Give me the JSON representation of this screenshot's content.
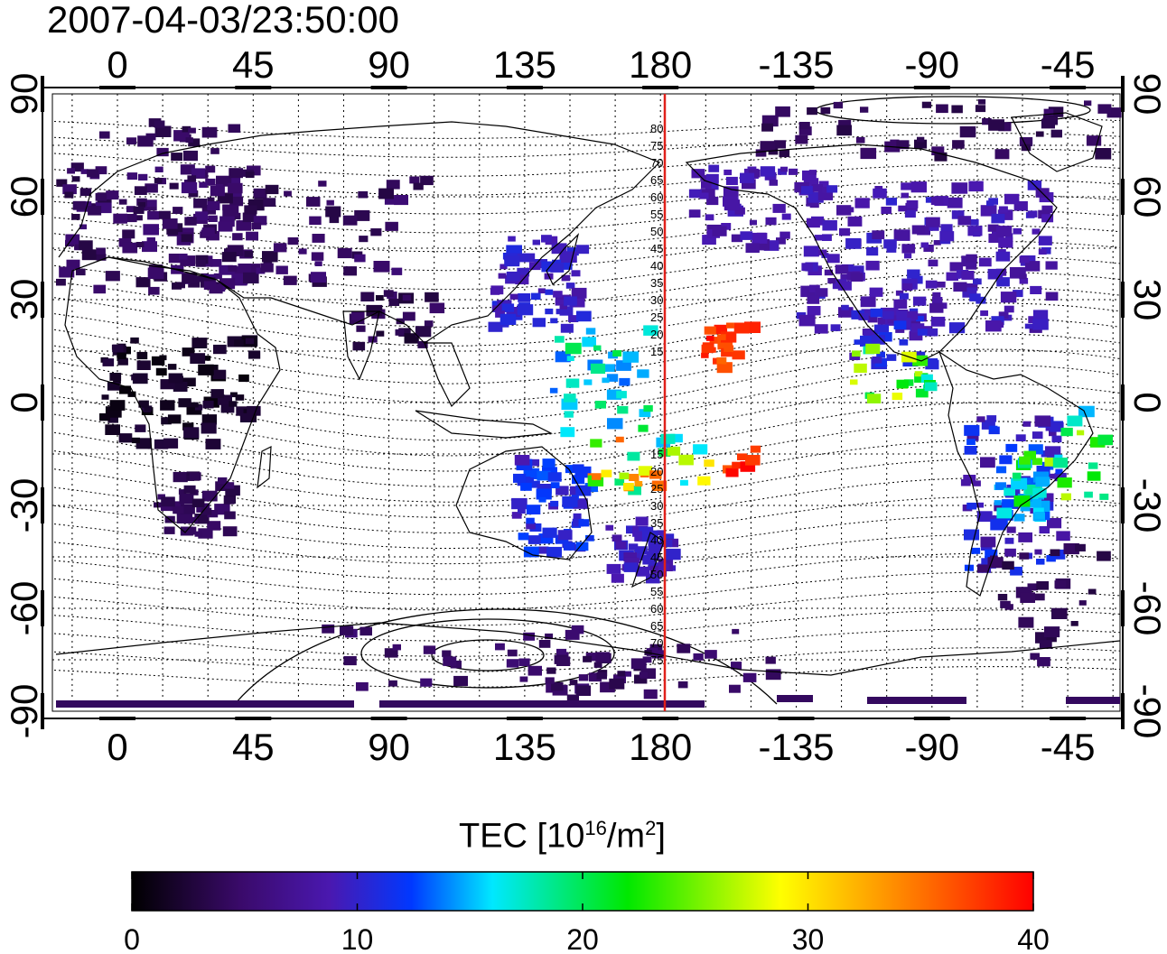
{
  "title": "2007-04-03/23:50:00",
  "map": {
    "lon_ticks_top": [
      "0",
      "45",
      "90",
      "135",
      "180",
      "-135",
      "-90",
      "-45"
    ],
    "lon_ticks_bottom": [
      "0",
      "45",
      "90",
      "135",
      "180",
      "-135",
      "-90",
      "-45"
    ],
    "lat_ticks_left": [
      "90",
      "60",
      "30",
      "0",
      "-30",
      "-60",
      "-90"
    ],
    "lat_ticks_right": [
      "90",
      "60",
      "30",
      "0",
      "-30",
      "-60",
      "-90"
    ],
    "meridian_labels_north": [
      "80",
      "75",
      "70",
      "65",
      "60",
      "55",
      "50",
      "45",
      "40",
      "35",
      "30",
      "25",
      "20",
      "15"
    ],
    "meridian_labels_south": [
      "15",
      "20",
      "25",
      "30",
      "35",
      "40",
      "45",
      "50",
      "55",
      "60",
      "65",
      "70",
      "75"
    ],
    "marker_line_color": "#e0201a",
    "grid": true
  },
  "colorbar": {
    "label_prefix": "TEC  [10",
    "label_exp1": "16",
    "label_mid": "/m",
    "label_exp2": "2",
    "label_suffix": "]",
    "ticks": [
      "0",
      "10",
      "20",
      "30",
      "40"
    ],
    "range": [
      0,
      40
    ],
    "colormap": [
      "#000000",
      "#3a0a6a",
      "#4a18b0",
      "#0038ff",
      "#00e8ff",
      "#00e800",
      "#ffff00",
      "#ff8000",
      "#ff0000"
    ]
  }
}
